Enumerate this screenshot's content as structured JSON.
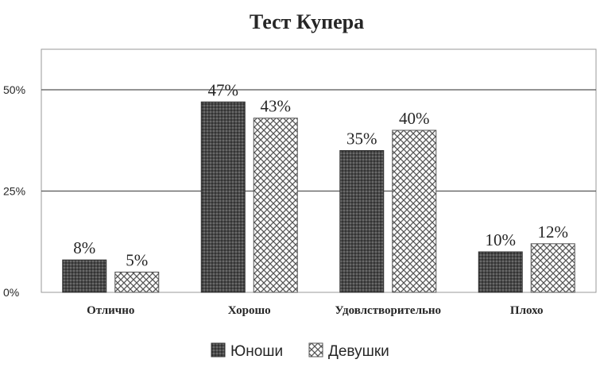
{
  "chart_data": {
    "type": "bar",
    "title": "Тест Купера",
    "categories": [
      "Отлично",
      "Хорошо",
      "Удовлстворительно",
      "Плохо"
    ],
    "series": [
      {
        "name": "Юноши",
        "values": [
          8,
          47,
          35,
          10
        ],
        "labels": [
          "8%",
          "47%",
          "35%",
          "10%"
        ],
        "color": "#555555",
        "pattern": "dark-dotted"
      },
      {
        "name": "Девушки",
        "values": [
          5,
          43,
          40,
          12
        ],
        "labels": [
          "5%",
          "43%",
          "40%",
          "12%"
        ],
        "color": "#ffffff",
        "pattern": "crosshatch"
      }
    ],
    "yticks": [
      {
        "value": 0,
        "label": "0%"
      },
      {
        "value": 25,
        "label": "25%"
      },
      {
        "value": 50,
        "label": "50%"
      }
    ],
    "ylim": [
      0,
      60
    ],
    "grid": true,
    "legend_position": "bottom"
  }
}
